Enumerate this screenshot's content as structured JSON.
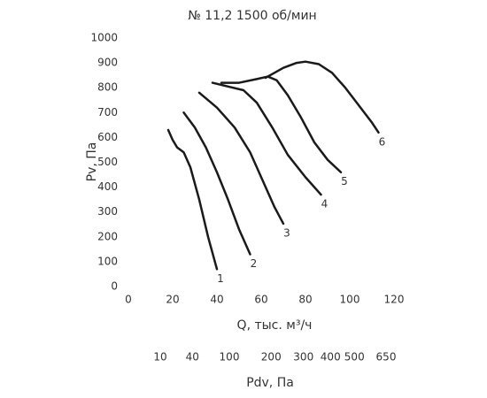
{
  "chart_data": {
    "type": "line",
    "title": "№ 11,2 1500 об/мин",
    "xlabel": "Q, тыс. м³/ч",
    "ylabel": "Pv, Па",
    "x2label": "Pdv, Па",
    "xlim": [
      0,
      120
    ],
    "xticks": [
      0,
      20,
      40,
      60,
      80,
      100,
      120
    ],
    "ylim": [
      0,
      1000
    ],
    "yticks": [
      0,
      100,
      200,
      300,
      400,
      500,
      600,
      700,
      800,
      900,
      1000
    ],
    "x2ticks": [
      {
        "value": 14.4,
        "label": "10"
      },
      {
        "value": 28.9,
        "label": "40"
      },
      {
        "value": 45.6,
        "label": "100"
      },
      {
        "value": 64.5,
        "label": "200"
      },
      {
        "value": 79.1,
        "label": "300"
      },
      {
        "value": 91.3,
        "label": "400"
      },
      {
        "value": 102.1,
        "label": "500"
      },
      {
        "value": 116.4,
        "label": "650"
      }
    ],
    "grid": false,
    "color": "#1a1a1a",
    "series": [
      {
        "name": "1",
        "x": [
          18,
          20,
          22,
          25,
          28,
          32,
          36,
          40
        ],
        "values": [
          630,
          590,
          560,
          540,
          480,
          350,
          200,
          70
        ]
      },
      {
        "name": "2",
        "x": [
          25,
          30,
          35,
          40,
          45,
          50,
          55
        ],
        "values": [
          700,
          640,
          560,
          460,
          350,
          230,
          130
        ]
      },
      {
        "name": "3",
        "x": [
          32,
          40,
          48,
          55,
          62,
          66,
          70
        ],
        "values": [
          780,
          720,
          640,
          540,
          400,
          320,
          253
        ]
      },
      {
        "name": "4",
        "x": [
          38,
          45,
          52,
          58,
          65,
          72,
          80,
          87
        ],
        "values": [
          820,
          805,
          790,
          740,
          640,
          530,
          440,
          370
        ]
      },
      {
        "name": "5",
        "x": [
          42,
          50,
          58,
          63,
          67,
          72,
          78,
          84,
          90,
          96
        ],
        "values": [
          820,
          820,
          835,
          845,
          830,
          770,
          680,
          580,
          510,
          460
        ]
      },
      {
        "name": "6",
        "x": [
          62,
          70,
          76,
          80,
          86,
          92,
          98,
          104,
          110,
          113
        ],
        "values": [
          840,
          880,
          900,
          905,
          895,
          860,
          800,
          730,
          660,
          620
        ]
      }
    ]
  }
}
